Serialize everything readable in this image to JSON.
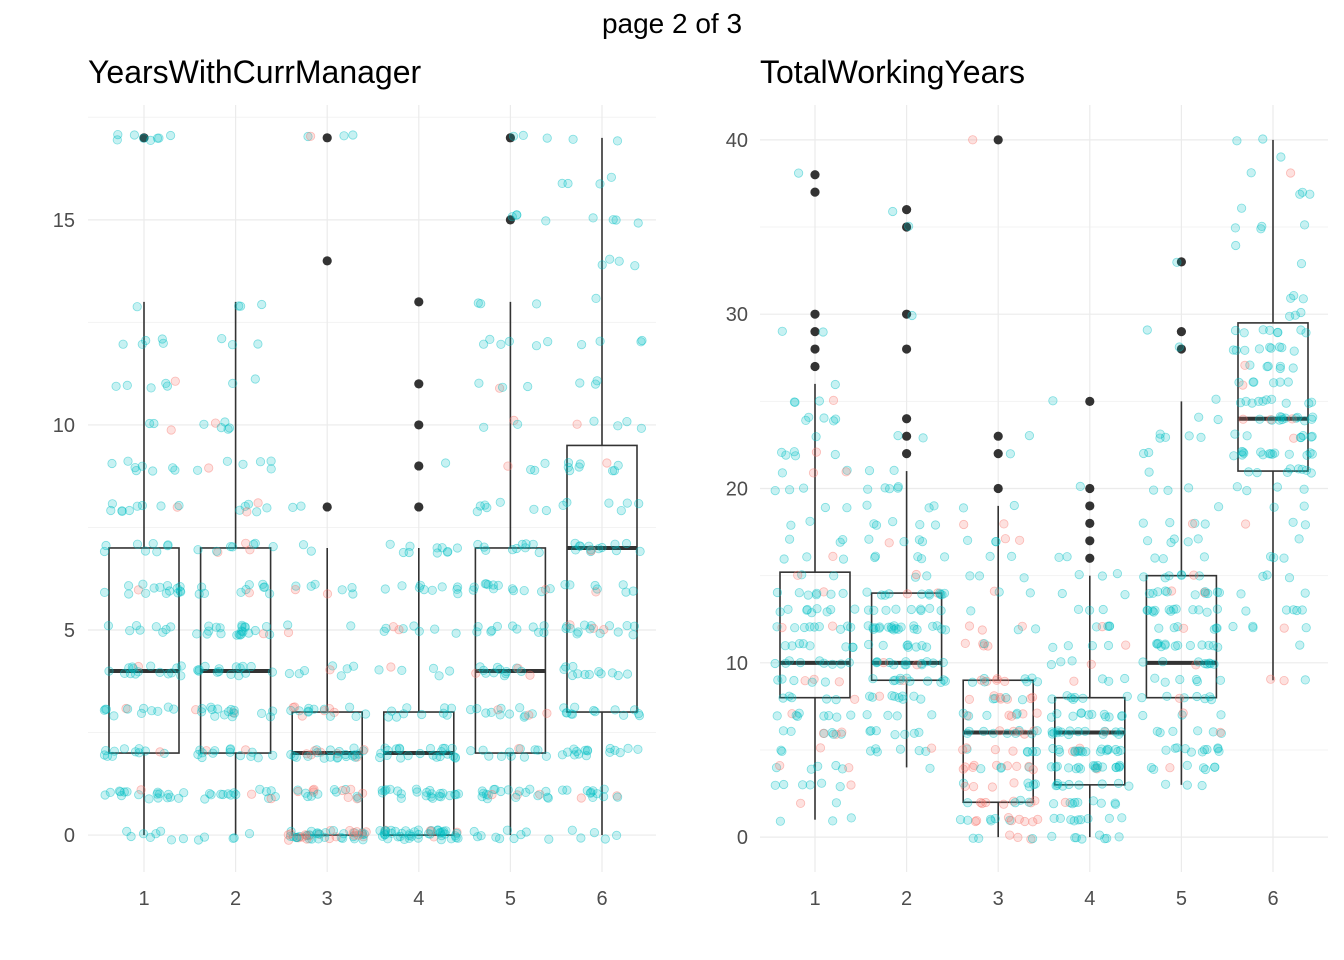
{
  "page_title": "page 2 of 3",
  "colors": {
    "series_a": "#00BFC4",
    "series_b": "#F8766D",
    "box_stroke": "#333333",
    "outlier": "#333333",
    "grid": "#ebebeb"
  },
  "chart_data": [
    {
      "type": "boxplot",
      "title": "YearsWithCurrManager",
      "xlabel": "",
      "ylabel": "",
      "categories": [
        "1",
        "2",
        "3",
        "4",
        "5",
        "6"
      ],
      "x_ticks": [
        "1",
        "2",
        "3",
        "4",
        "5",
        "6"
      ],
      "y_ticks": [
        0,
        5,
        10,
        15
      ],
      "ylim": [
        -0.9,
        17.8
      ],
      "grid": true,
      "legend": "none",
      "jitter_points": "dense overlay of semi-transparent points, mostly teal with some salmon",
      "boxes": [
        {
          "category": "1",
          "whisker_low": 0,
          "q1": 2,
          "median": 4,
          "q3": 7,
          "whisker_high": 13,
          "outliers": [
            17
          ]
        },
        {
          "category": "2",
          "whisker_low": 0,
          "q1": 2,
          "median": 4,
          "q3": 7,
          "whisker_high": 13,
          "outliers": []
        },
        {
          "category": "3",
          "whisker_low": 0,
          "q1": 0,
          "median": 2,
          "q3": 3,
          "whisker_high": 7,
          "outliers": [
            8,
            14,
            17
          ]
        },
        {
          "category": "4",
          "whisker_low": 0,
          "q1": 0,
          "median": 2,
          "q3": 3,
          "whisker_high": 7,
          "outliers": [
            8,
            9,
            10,
            11,
            13
          ]
        },
        {
          "category": "5",
          "whisker_low": 0,
          "q1": 2,
          "median": 4,
          "q3": 7,
          "whisker_high": 13,
          "outliers": [
            15,
            17
          ]
        },
        {
          "category": "6",
          "whisker_low": 0,
          "q1": 3,
          "median": 7,
          "q3": 9.5,
          "whisker_high": 17,
          "outliers": []
        }
      ]
    },
    {
      "type": "boxplot",
      "title": "TotalWorkingYears",
      "xlabel": "",
      "ylabel": "",
      "categories": [
        "1",
        "2",
        "3",
        "4",
        "5",
        "6"
      ],
      "x_ticks": [
        "1",
        "2",
        "3",
        "4",
        "5",
        "6"
      ],
      "y_ticks": [
        0,
        10,
        20,
        30,
        40
      ],
      "ylim": [
        -2,
        42
      ],
      "grid": true,
      "legend": "none",
      "jitter_points": "dense overlay of semi-transparent points, mostly teal with some salmon",
      "boxes": [
        {
          "category": "1",
          "whisker_low": 1,
          "q1": 8,
          "median": 10,
          "q3": 15.2,
          "whisker_high": 26,
          "outliers": [
            27,
            28,
            29,
            30,
            37,
            38
          ]
        },
        {
          "category": "2",
          "whisker_low": 4,
          "q1": 9,
          "median": 10,
          "q3": 14,
          "whisker_high": 21,
          "outliers": [
            22,
            23,
            24,
            28,
            30,
            35,
            36
          ]
        },
        {
          "category": "3",
          "whisker_low": 0,
          "q1": 2,
          "median": 6,
          "q3": 9,
          "whisker_high": 19,
          "outliers": [
            20,
            22,
            23,
            40
          ]
        },
        {
          "category": "4",
          "whisker_low": 0,
          "q1": 3,
          "median": 6,
          "q3": 8,
          "whisker_high": 15,
          "outliers": [
            16,
            17,
            18,
            19,
            20,
            25
          ]
        },
        {
          "category": "5",
          "whisker_low": 3,
          "q1": 8,
          "median": 10,
          "q3": 15,
          "whisker_high": 25,
          "outliers": [
            28,
            29,
            33
          ]
        },
        {
          "category": "6",
          "whisker_low": 9,
          "q1": 21,
          "median": 24,
          "q3": 29.5,
          "whisker_high": 40,
          "outliers": []
        }
      ]
    }
  ]
}
